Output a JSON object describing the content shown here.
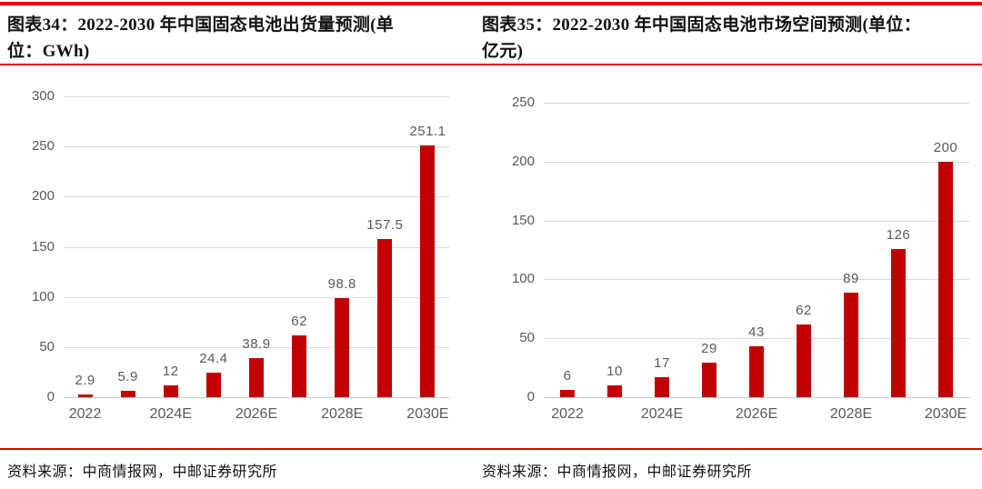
{
  "page": {
    "accent_color": "#e00000",
    "bar_color": "#c00000",
    "grid_color": "#d9d9d9",
    "label_color": "#595959"
  },
  "figures": [
    {
      "id": "34",
      "title_line1": "图表34：2022-2030 年中国固态电池出货量预测(单",
      "title_line2": "位：GWh)",
      "source": "资料来源：中商情报网，中邮证券研究所"
    },
    {
      "id": "35",
      "title_line1": "图表35：2022-2030 年中国固态电池市场空间预测(单位：",
      "title_line2": "亿元)",
      "source": "资料来源：中商情报网，中邮证券研究所"
    }
  ],
  "chart_data": [
    {
      "type": "bar",
      "title": "图表34：2022-2030 年中国固态电池出货量预测",
      "unit": "GWh",
      "categories": [
        "2022",
        "",
        "2024E",
        "",
        "2026E",
        "",
        "2028E",
        "",
        "2030E"
      ],
      "values": [
        2.9,
        5.9,
        12,
        24.4,
        38.9,
        62,
        98.8,
        157.5,
        251.1
      ],
      "value_labels": [
        "2.9",
        "5.9",
        "12",
        "24.4",
        "38.9",
        "62",
        "98.8",
        "157.5",
        "251.1"
      ],
      "ylim": [
        0,
        300
      ],
      "yticks": [
        0,
        50,
        100,
        150,
        200,
        250,
        300
      ],
      "xlabel": "",
      "ylabel": "",
      "grid": true,
      "legend": "none",
      "bar_color": "#c00000"
    },
    {
      "type": "bar",
      "title": "图表35：2022-2030 年中国固态电池市场空间预测",
      "unit": "亿元",
      "categories": [
        "2022",
        "",
        "2024E",
        "",
        "2026E",
        "",
        "2028E",
        "",
        "2030E"
      ],
      "values": [
        6,
        10,
        17,
        29,
        43,
        62,
        89,
        126,
        200
      ],
      "value_labels": [
        "6",
        "10",
        "17",
        "29",
        "43",
        "62",
        "89",
        "126",
        "200"
      ],
      "ylim": [
        0,
        250
      ],
      "yticks": [
        0,
        50,
        100,
        150,
        200,
        250
      ],
      "xlabel": "",
      "ylabel": "",
      "grid": true,
      "legend": "none",
      "bar_color": "#c00000"
    }
  ]
}
